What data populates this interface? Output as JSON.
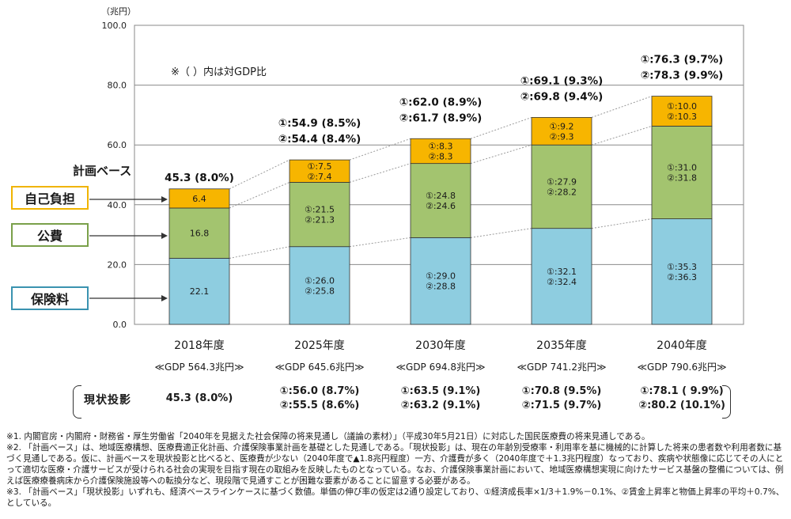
{
  "chart_data": {
    "type": "bar",
    "stacked": true,
    "unit_label": "（兆円）",
    "categories": [
      "2018年度",
      "2025年度",
      "2030年度",
      "2035年度",
      "2040年度"
    ],
    "yticks": [
      "100.0",
      "80.0",
      "60.0",
      "40.0",
      "20.0",
      "0.0"
    ],
    "ylim": [
      0,
      100
    ],
    "series": [
      {
        "name": "保険料",
        "values": [
          22.1,
          26.0,
          29.0,
          32.1,
          35.3
        ],
        "color": "#8ecde0"
      },
      {
        "name": "公費",
        "values": [
          16.8,
          21.5,
          24.8,
          27.9,
          31.0
        ],
        "color": "#a3c46f"
      },
      {
        "name": "自己負担",
        "values": [
          6.4,
          7.5,
          8.3,
          9.2,
          10.0
        ],
        "color": "#f7b500"
      }
    ],
    "segment_labels": [
      [
        "22.1",
        "16.8",
        "6.4"
      ],
      [
        "①:26.0\n②:25.8",
        "①:21.5\n②:21.3",
        "①:7.5\n②:7.4"
      ],
      [
        "①:29.0\n②:28.8",
        "①:24.8\n②:24.6",
        "①:8.3\n②:8.3"
      ],
      [
        "①:32.1\n②:32.4",
        "①:27.9\n②:28.2",
        "①:9.2\n②:9.3"
      ],
      [
        "①:35.3\n②:36.3",
        "①:31.0\n②:31.8",
        "①:10.0\n②:10.3"
      ]
    ],
    "total_labels": [
      [
        "45.3 (8.0%)"
      ],
      [
        "①:54.9 (8.5%)",
        "②:54.4 (8.4%)"
      ],
      [
        "①:62.0 (8.9%)",
        "②:61.7 (8.9%)"
      ],
      [
        "①:69.1 (9.3%)",
        "②:69.8 (9.4%)"
      ],
      [
        "①:76.3 (9.7%)",
        "②:78.3 (9.9%)"
      ]
    ],
    "gdp_labels": [
      "≪GDP 564.3兆円≫",
      "≪GDP 645.6兆円≫",
      "≪GDP 694.8兆円≫",
      "≪GDP 741.2兆円≫",
      "≪GDP 790.6兆円≫"
    ],
    "grid": true
  },
  "note_top": "※（ ）内は対GDP比",
  "keikaku_label": "計画ベース",
  "legend": {
    "jiko": "自己負担",
    "kouhi": "公費",
    "hoken": "保険料"
  },
  "genjo": {
    "label": "現状投影",
    "cells": [
      [
        "45.3 (8.0%)"
      ],
      [
        "①:56.0 (8.7%)",
        "②:55.5 (8.6%)"
      ],
      [
        "①:63.5 (9.1%)",
        "②:63.2 (9.1%)"
      ],
      [
        "①:70.8 (9.5%)",
        "②:71.5 (9.7%)"
      ],
      [
        "①:78.1 ( 9.9%)",
        "②:80.2 (10.1%)"
      ]
    ]
  },
  "footnotes": [
    "※1. 内閣官房・内閣府・財務省・厚生労働省「2040年を見据えた社会保障の将来見通し（議論の素材）」（平成30年5月21日）に対応した国民医療費の将来見通しである。",
    "※2. 「計画ベース」は、地域医療構想、医療費適正化計画、介護保険事業計画を基礎とした見通しである。「現状投影」は、現在の年齢別受療率・利用率を基に機械的に計算した将来の患者数や利用者数に基づく見通しである。仮に、計画ベースを現状投影と比べると、医療費が少ない（2040年度で▲1.8兆円程度）一方、介護費が多く（2040年度で＋1.3兆円程度）なっており、疾病や状態像に応じてその人にとって適切な医療・介護サービスが受けられる社会の実現を目指す現在の取組みを反映したものとなっている。なお、介護保険事業計画において、地域医療構想実現に向けたサービス基盤の整備については、例えば医療療養病床から介護保険施設等への転換分など、現段階で見通すことが困難な要素があることに留意する必要がある。",
    "※3. 「計画ベース」「現状投影」いずれも、経済ベースラインケースに基づく数値。単価の伸び率の仮定は2通り設定しており、①経済成長率×1/3＋1.9%－0.1%、②賃金上昇率と物価上昇率の平均＋0.7%、としている。"
  ]
}
